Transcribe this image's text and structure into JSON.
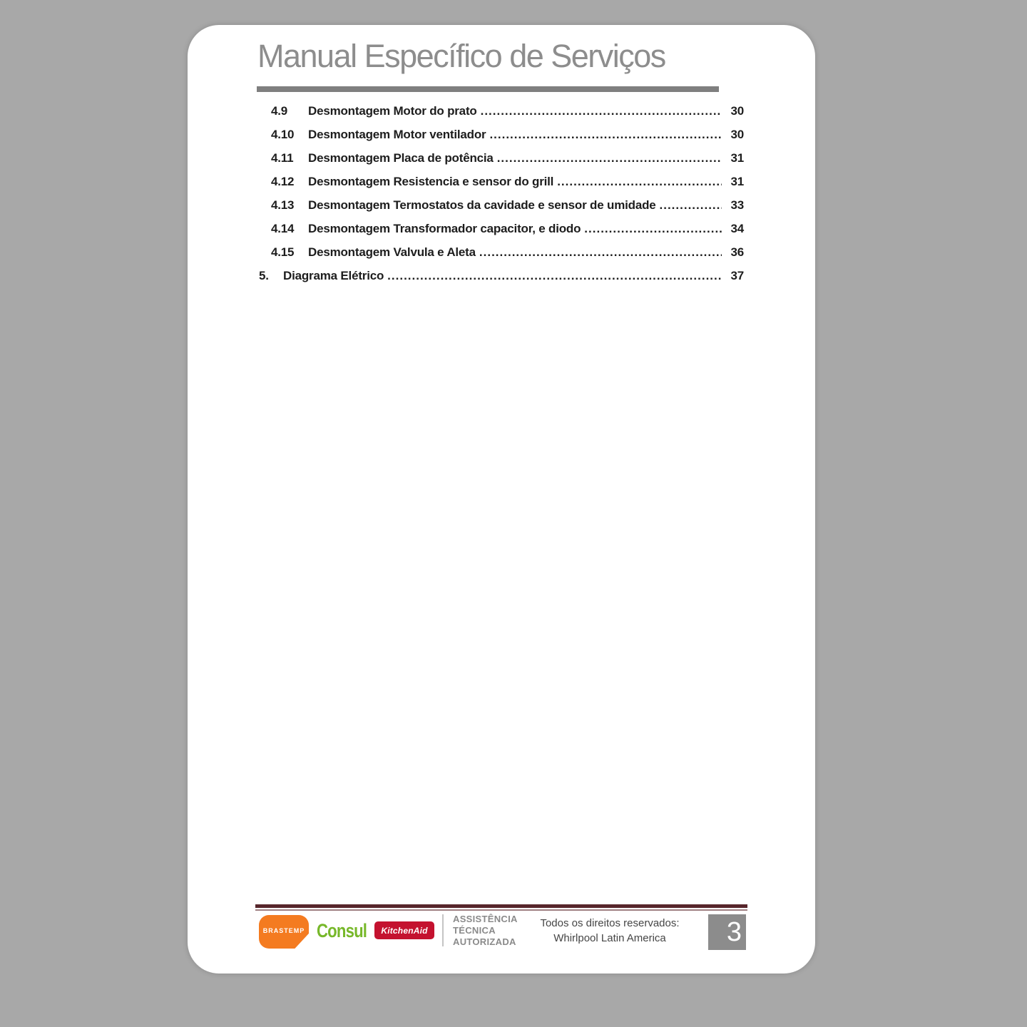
{
  "document": {
    "title": "Manual Específico de Serviços",
    "page_number": "3"
  },
  "toc": {
    "entries": [
      {
        "number": "4.9",
        "label": "Desmontagem Motor do prato",
        "page": "30",
        "level": 2
      },
      {
        "number": "4.10",
        "label": "Desmontagem Motor ventilador",
        "page": "30",
        "level": 2
      },
      {
        "number": "4.11",
        "label": "Desmontagem Placa de potência",
        "page": "31",
        "level": 2
      },
      {
        "number": "4.12",
        "label": "Desmontagem Resistencia e sensor do grill",
        "page": "31",
        "level": 2
      },
      {
        "number": "4.13",
        "label": "Desmontagem Termostatos da cavidade e sensor de umidade",
        "page": "33",
        "level": 2
      },
      {
        "number": "4.14",
        "label": "Desmontagem Transformador capacitor, e diodo",
        "page": "34",
        "level": 2
      },
      {
        "number": "4.15",
        "label": "Desmontagem Valvula e Aleta",
        "page": "36",
        "level": 2
      },
      {
        "number": "5.",
        "label": "Diagrama Elétrico",
        "page": "37",
        "level": 1
      }
    ]
  },
  "footer": {
    "brands": {
      "brastemp_label": "BRASTEMP",
      "consul_label": "Consul",
      "kitchenaid_label": "KitchenAid"
    },
    "authorized_service": [
      "ASSISTÊNCIA",
      "TÉCNICA",
      "AUTORIZADA"
    ],
    "rights_line1": "Todos os direitos reservados:",
    "rights_line2": "Whirlpool Latin America",
    "page_number": "3"
  },
  "colors": {
    "background": "#a8a8a8",
    "title_gray": "#8d8d8d",
    "rule_gray": "#7f7f7f",
    "toc_text": "#1d1d1d",
    "footer_rule_maroon": "#57262b",
    "brastemp_orange": "#F47B20",
    "consul_green": "#77B82A",
    "kitchenaid_red": "#C4122F",
    "pagenum_box_gray": "#8C8C8C"
  }
}
